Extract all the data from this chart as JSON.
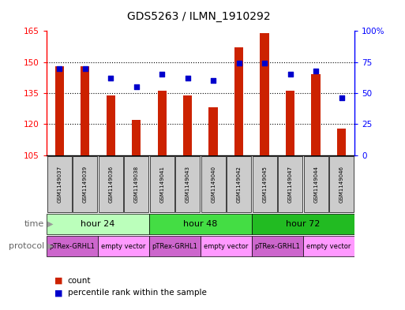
{
  "title": "GDS5263 / ILMN_1910292",
  "samples": [
    "GSM1149037",
    "GSM1149039",
    "GSM1149036",
    "GSM1149038",
    "GSM1149041",
    "GSM1149043",
    "GSM1149040",
    "GSM1149042",
    "GSM1149045",
    "GSM1149047",
    "GSM1149044",
    "GSM1149046"
  ],
  "count_values": [
    148,
    148,
    134,
    122,
    136,
    134,
    128,
    157,
    164,
    136,
    144,
    118
  ],
  "percentile_values": [
    70,
    70,
    62,
    55,
    65,
    62,
    60,
    74,
    74,
    65,
    68,
    46
  ],
  "ylim_left": [
    105,
    165
  ],
  "ylim_right": [
    0,
    100
  ],
  "yticks_left": [
    105,
    120,
    135,
    150,
    165
  ],
  "yticks_right": [
    0,
    25,
    50,
    75,
    100
  ],
  "ytick_labels_right": [
    "0",
    "25",
    "50",
    "75",
    "100%"
  ],
  "bar_color": "#cc2200",
  "dot_color": "#0000cc",
  "time_groups": [
    {
      "label": "hour 24",
      "start": 0,
      "end": 4,
      "color": "#bbffbb"
    },
    {
      "label": "hour 48",
      "start": 4,
      "end": 8,
      "color": "#44dd44"
    },
    {
      "label": "hour 72",
      "start": 8,
      "end": 12,
      "color": "#22bb22"
    }
  ],
  "protocol_groups": [
    {
      "label": "pTRex-GRHL1",
      "start": 0,
      "end": 2,
      "color": "#cc66cc"
    },
    {
      "label": "empty vector",
      "start": 2,
      "end": 4,
      "color": "#ff99ff"
    },
    {
      "label": "pTRex-GRHL1",
      "start": 4,
      "end": 6,
      "color": "#cc66cc"
    },
    {
      "label": "empty vector",
      "start": 6,
      "end": 8,
      "color": "#ff99ff"
    },
    {
      "label": "pTRex-GRHL1",
      "start": 8,
      "end": 10,
      "color": "#cc66cc"
    },
    {
      "label": "empty vector",
      "start": 10,
      "end": 12,
      "color": "#ff99ff"
    }
  ],
  "time_label": "time",
  "protocol_label": "protocol",
  "legend_count_label": "count",
  "legend_pct_label": "percentile rank within the sample",
  "bar_width": 0.35,
  "dot_size": 22,
  "sample_box_color": "#cccccc",
  "background_color": "#ffffff"
}
